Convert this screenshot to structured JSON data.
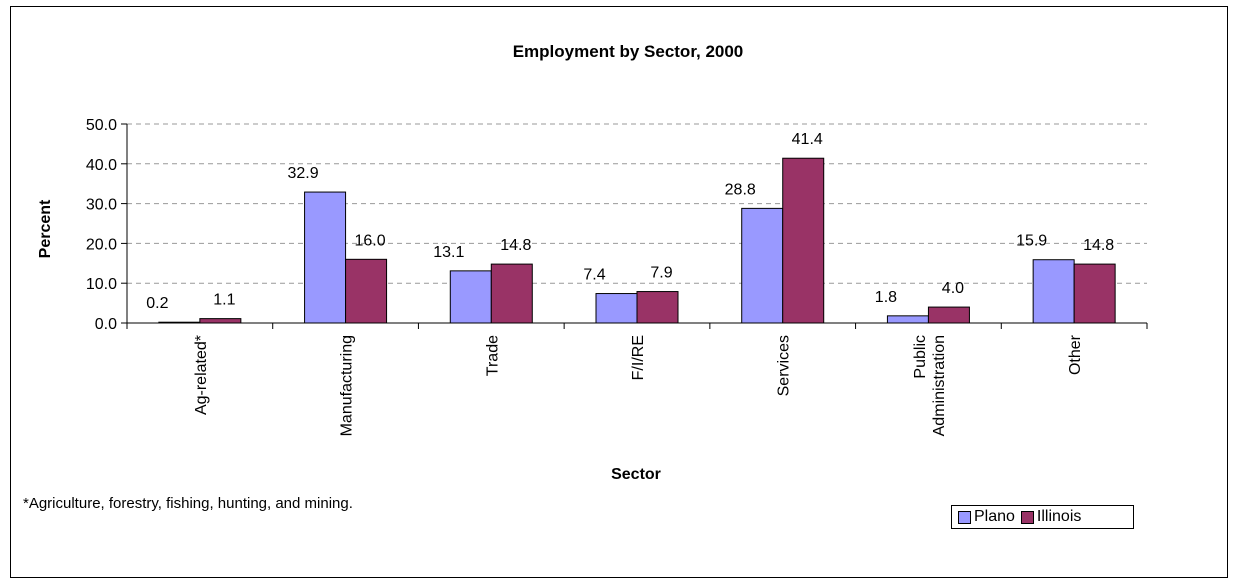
{
  "chart_data": {
    "type": "bar",
    "title": "Employment by Sector, 2000",
    "xlabel": "Sector",
    "ylabel": "Percent",
    "ylim": [
      0,
      50
    ],
    "yticks": [
      "0.0",
      "10.0",
      "20.0",
      "30.0",
      "40.0",
      "50.0"
    ],
    "grid": true,
    "legend_position": "bottom-right",
    "categories": [
      [
        "Ag-related*"
      ],
      [
        "Manufacturing"
      ],
      [
        "Trade"
      ],
      [
        "F/I/RE"
      ],
      [
        "Services"
      ],
      [
        "Public",
        "Administration"
      ],
      [
        "Other"
      ]
    ],
    "series": [
      {
        "name": "Plano",
        "color": "#9999ff",
        "values": [
          0.2,
          32.9,
          13.1,
          7.4,
          28.8,
          1.8,
          15.9
        ],
        "labels": [
          "0.2",
          "32.9",
          "13.1",
          "7.4",
          "28.8",
          "1.8",
          "15.9"
        ]
      },
      {
        "name": "Illinois",
        "color": "#993366",
        "values": [
          1.1,
          16.0,
          14.8,
          7.9,
          41.4,
          4.0,
          14.8
        ],
        "labels": [
          "1.1",
          "16.0",
          "14.8",
          "7.9",
          "41.4",
          "4.0",
          "14.8"
        ]
      }
    ],
    "footnote": "*Agriculture, forestry, fishing, hunting, and mining."
  }
}
